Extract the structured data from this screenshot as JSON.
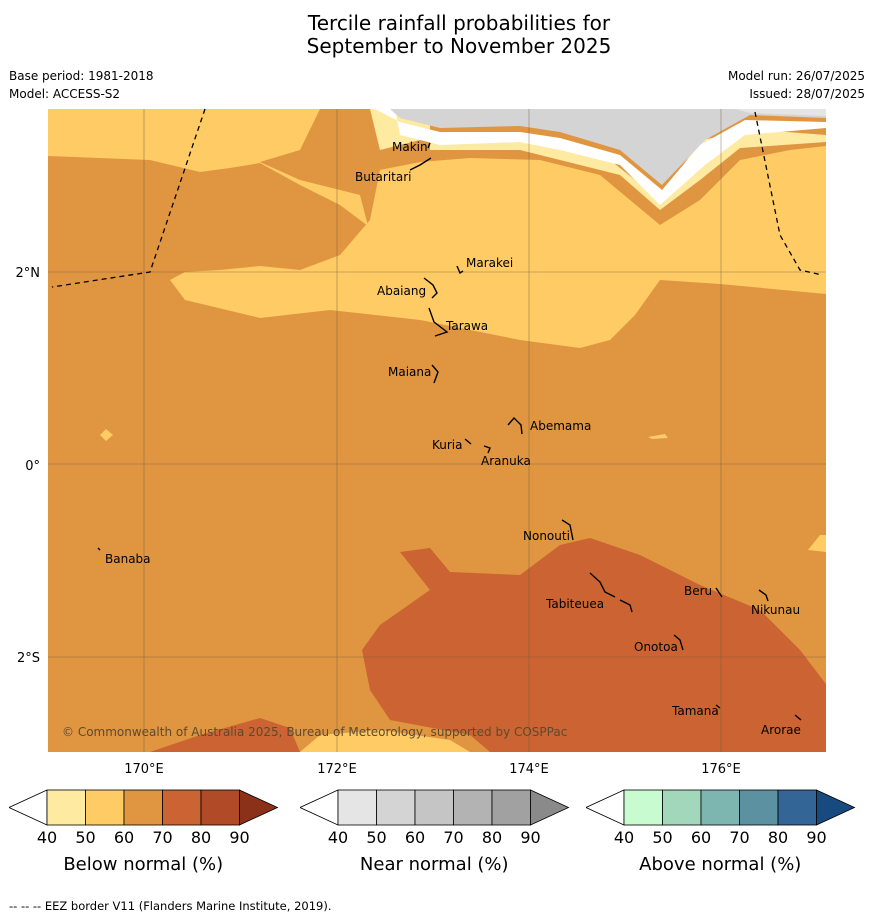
{
  "title_line1": "Tercile rainfall probabilities for",
  "title_line2": "September to November 2025",
  "base_period": "Base period: 1981-2018",
  "model": "Model: ACCESS-S2",
  "model_run": "Model run: 26/07/2025",
  "issued": "Issued: 28/07/2025",
  "map": {
    "lon_range": [
      169.0,
      177.1
    ],
    "lat_range": [
      -3.0,
      3.7
    ],
    "lon_ticks": [
      "170°E",
      "172°E",
      "174°E",
      "176°E"
    ],
    "lat_ticks": [
      "2°N",
      "0°",
      "2°S"
    ],
    "copyright": "© Commonwealth of Australia 2025, Bureau of Meteorology, supported by COSPPac",
    "islands": [
      "Makin",
      "Butaritari",
      "Marakei",
      "Abaiang",
      "Tarawa",
      "Maiana",
      "Abemama",
      "Kuria",
      "Aranuka",
      "Banaba",
      "Nonouti",
      "Beru",
      "Nikunau",
      "Tabiteuea",
      "Onotoa",
      "Tamana",
      "Arorae"
    ]
  },
  "colorbars": [
    {
      "label": "Below normal (%)",
      "ticks": [
        "40",
        "50",
        "60",
        "70",
        "80",
        "90"
      ],
      "colors": [
        "#ffffff",
        "#ffeaa1",
        "#fecb65",
        "#e09541",
        "#cb6432",
        "#b04a27",
        "#8c3119"
      ]
    },
    {
      "label": "Near normal (%)",
      "ticks": [
        "40",
        "50",
        "60",
        "70",
        "80",
        "90"
      ],
      "colors": [
        "#ffffff",
        "#e5e5e5",
        "#d4d4d4",
        "#c5c5c5",
        "#b3b3b3",
        "#a1a1a1",
        "#8a8a8a"
      ]
    },
    {
      "label": "Above normal (%)",
      "ticks": [
        "40",
        "50",
        "60",
        "70",
        "80",
        "90"
      ],
      "colors": [
        "#ffffff",
        "#c8fbcf",
        "#a3d7bb",
        "#7db5b0",
        "#5c91a1",
        "#336596",
        "#174a7f"
      ]
    }
  ],
  "footnote": "--  --  -- EEZ border V11 (Flanders Marine Institute, 2019)."
}
